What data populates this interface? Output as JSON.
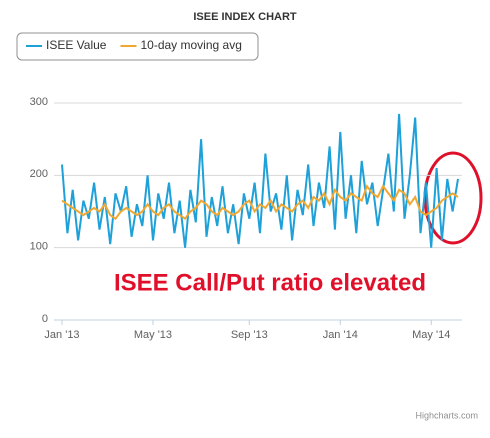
{
  "chart_data": {
    "type": "line",
    "title": "ISEE INDEX CHART",
    "annotation": "ISEE Call/Put ratio elevated",
    "credit": "Highcharts.com",
    "categories": [
      "Jan '13",
      null,
      null,
      null,
      null,
      null,
      null,
      null,
      null,
      null,
      null,
      null,
      null,
      null,
      null,
      null,
      null,
      "May '13",
      null,
      null,
      null,
      null,
      null,
      null,
      null,
      null,
      null,
      null,
      null,
      null,
      null,
      null,
      null,
      null,
      null,
      "Sep '13",
      null,
      null,
      null,
      null,
      null,
      null,
      null,
      null,
      null,
      null,
      null,
      null,
      null,
      null,
      null,
      null,
      "Jan '14",
      null,
      null,
      null,
      null,
      null,
      null,
      null,
      null,
      null,
      null,
      null,
      null,
      null,
      null,
      null,
      null,
      "May '14",
      null,
      null,
      null,
      null,
      null
    ],
    "series": [
      {
        "name": "ISEE Value",
        "color": "#1ea0d8",
        "values": [
          215,
          120,
          180,
          110,
          165,
          140,
          190,
          125,
          170,
          105,
          175,
          150,
          185,
          115,
          160,
          130,
          200,
          110,
          175,
          140,
          190,
          120,
          165,
          100,
          180,
          135,
          250,
          115,
          170,
          130,
          185,
          120,
          160,
          105,
          175,
          140,
          190,
          120,
          230,
          150,
          175,
          125,
          200,
          110,
          180,
          145,
          215,
          130,
          190,
          155,
          240,
          125,
          260,
          140,
          200,
          120,
          220,
          160,
          190,
          130,
          180,
          230,
          150,
          285,
          140,
          200,
          280,
          120,
          190,
          100,
          210,
          110,
          195,
          150,
          195
        ]
      },
      {
        "name": "10-day moving avg",
        "color": "#f0a830",
        "values": [
          165,
          160,
          155,
          150,
          145,
          150,
          155,
          150,
          160,
          145,
          140,
          150,
          155,
          150,
          145,
          150,
          160,
          150,
          145,
          155,
          160,
          150,
          145,
          140,
          150,
          155,
          165,
          160,
          150,
          145,
          155,
          150,
          145,
          150,
          160,
          165,
          150,
          160,
          155,
          165,
          150,
          160,
          155,
          150,
          160,
          165,
          155,
          170,
          165,
          175,
          160,
          180,
          170,
          165,
          175,
          170,
          165,
          185,
          175,
          170,
          185,
          175,
          165,
          180,
          175,
          160,
          170,
          150,
          145,
          150,
          155,
          165,
          170,
          175,
          170
        ]
      }
    ],
    "ylim": [
      0,
      300
    ],
    "yticks": [
      0,
      100,
      200,
      300
    ],
    "grid": true,
    "legend": "top-left"
  }
}
